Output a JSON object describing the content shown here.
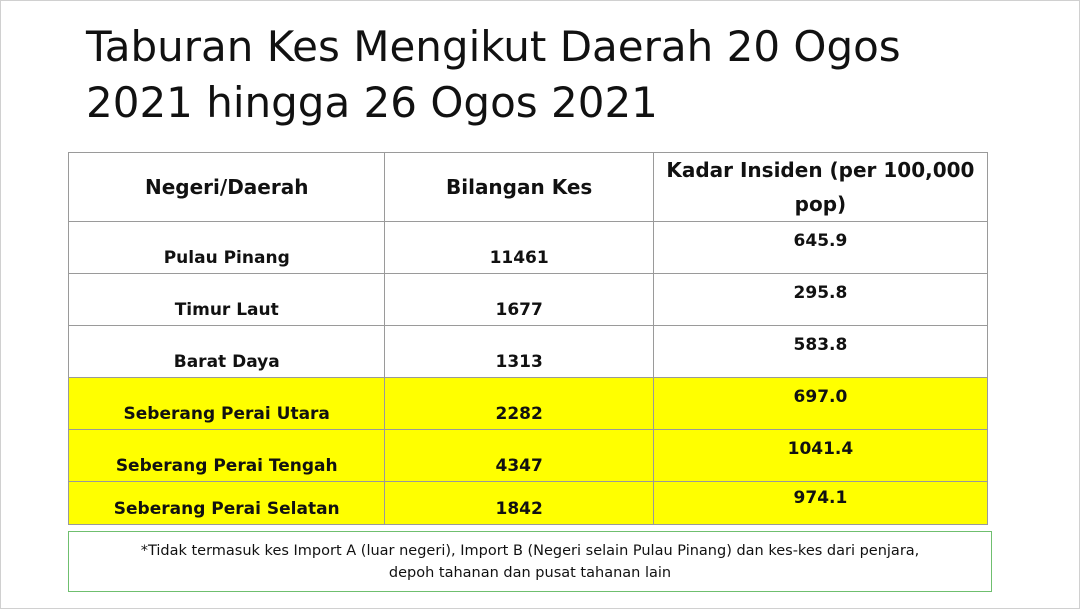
{
  "title": {
    "line1": "Taburan Kes Mengikut Daerah  20 Ogos",
    "line2": "2021 hingga 26 Ogos 2021"
  },
  "table": {
    "headers": [
      "Negeri/Daerah",
      "Bilangan Kes",
      "Kadar Insiden (per 100,000 pop)"
    ],
    "rows": [
      {
        "area": "Pulau Pinang",
        "cases": "11461",
        "rate": "645.9",
        "highlight": false
      },
      {
        "area": "Timur Laut",
        "cases": "1677",
        "rate": "295.8",
        "highlight": false
      },
      {
        "area": "Barat Daya",
        "cases": "1313",
        "rate": "583.8",
        "highlight": false
      },
      {
        "area": "Seberang Perai Utara",
        "cases": "2282",
        "rate": "697.0",
        "highlight": true
      },
      {
        "area": "Seberang Perai Tengah",
        "cases": "4347",
        "rate": "1041.4",
        "highlight": true
      },
      {
        "area": "Seberang Perai Selatan",
        "cases": "1842",
        "rate": "974.1",
        "highlight": true
      }
    ],
    "highlight_color": "#ffff00"
  },
  "note": {
    "line1": "*Tidak termasuk kes Import A (luar negeri), Import B (Negeri selain Pulau Pinang) dan kes-kes dari penjara,",
    "line2": "depoh tahanan dan pusat tahanan lain"
  }
}
